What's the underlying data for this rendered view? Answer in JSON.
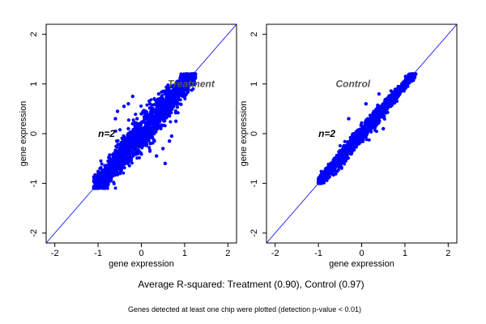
{
  "figure": {
    "caption": "Average R-squared: Treatment (0.90), Control (0.97)",
    "note": "Genes detected at least one chip were plotted (detection p-value < 0.01)"
  },
  "chart_data": [
    {
      "type": "scatter",
      "title": "Treatment",
      "annotation": "n=2",
      "xlabel": "gene expression",
      "ylabel": "gene expression",
      "xlim": [
        -2.2,
        2.2
      ],
      "ylim": [
        -2.2,
        2.2
      ],
      "xticks": [
        -2,
        -1,
        0,
        1,
        2
      ],
      "yticks": [
        -2,
        -1,
        0,
        1,
        2
      ],
      "grid": false,
      "point_color": "#0000ff",
      "reference_line": {
        "slope": 1,
        "intercept": 0,
        "color": "#0000ff"
      },
      "data_extent": {
        "x": [
          -1.1,
          1.25
        ],
        "y": [
          -1.1,
          1.2
        ]
      },
      "r_squared": 0.9,
      "series": [
        {
          "points": [
            [
              -1.05,
              -1.02
            ],
            [
              -0.95,
              -0.98
            ],
            [
              -0.9,
              -0.85
            ],
            [
              -0.85,
              -0.95
            ],
            [
              -0.8,
              -0.7
            ],
            [
              -0.75,
              -0.9
            ],
            [
              -0.7,
              -0.6
            ],
            [
              -0.65,
              -0.8
            ],
            [
              -0.6,
              -0.4
            ],
            [
              -0.55,
              -0.7
            ],
            [
              -0.5,
              -0.3
            ],
            [
              -0.45,
              -0.6
            ],
            [
              -0.4,
              -0.2
            ],
            [
              -0.35,
              -0.5
            ],
            [
              -0.3,
              0.1
            ],
            [
              -0.25,
              -0.35
            ],
            [
              -0.2,
              0.2
            ],
            [
              -0.15,
              -0.25
            ],
            [
              -0.1,
              0.3
            ],
            [
              -0.05,
              -0.15
            ],
            [
              0,
              0.4
            ],
            [
              0.05,
              -0.1
            ],
            [
              0.1,
              0.45
            ],
            [
              0.15,
              0
            ],
            [
              0.2,
              0.6
            ],
            [
              0.25,
              0.1
            ],
            [
              0.3,
              0.7
            ],
            [
              0.35,
              0.2
            ],
            [
              0.4,
              0.8
            ],
            [
              0.45,
              0.3
            ],
            [
              0.5,
              0.85
            ],
            [
              0.55,
              0.4
            ],
            [
              0.6,
              0.9
            ],
            [
              0.65,
              0.5
            ],
            [
              0.7,
              0.95
            ],
            [
              0.75,
              0.6
            ],
            [
              0.8,
              1.0
            ],
            [
              0.85,
              0.7
            ],
            [
              0.9,
              1.05
            ],
            [
              0.95,
              0.8
            ],
            [
              1.0,
              1.1
            ],
            [
              1.05,
              0.9
            ],
            [
              1.1,
              1.12
            ],
            [
              1.15,
              1.0
            ],
            [
              1.2,
              1.15
            ],
            [
              -0.55,
              0.45
            ],
            [
              -0.4,
              0.55
            ],
            [
              -0.2,
              0.75
            ],
            [
              0.5,
              -0.3
            ],
            [
              0.65,
              -0.15
            ],
            [
              0.35,
              -0.45
            ],
            [
              -0.6,
              0.3
            ],
            [
              0.7,
              -0.05
            ],
            [
              0.8,
              0.25
            ],
            [
              -0.3,
              0.6
            ],
            [
              0.55,
              -0.6
            ]
          ]
        }
      ]
    },
    {
      "type": "scatter",
      "title": "Control",
      "annotation": "n=2",
      "xlabel": "gene expression",
      "ylabel": "gene expression",
      "xlim": [
        -2.2,
        2.2
      ],
      "ylim": [
        -2.2,
        2.2
      ],
      "xticks": [
        -2,
        -1,
        0,
        1,
        2
      ],
      "yticks": [
        -2,
        -1,
        0,
        1,
        2
      ],
      "grid": false,
      "point_color": "#0000ff",
      "reference_line": {
        "slope": 1,
        "intercept": 0,
        "color": "#0000ff"
      },
      "data_extent": {
        "x": [
          -1.0,
          1.25
        ],
        "y": [
          -1.0,
          1.2
        ]
      },
      "r_squared": 0.97,
      "series": [
        {
          "points": [
            [
              -1.0,
              -0.98
            ],
            [
              -0.95,
              -0.88
            ],
            [
              -0.9,
              -0.92
            ],
            [
              -0.85,
              -0.78
            ],
            [
              -0.8,
              -0.85
            ],
            [
              -0.75,
              -0.68
            ],
            [
              -0.7,
              -0.75
            ],
            [
              -0.65,
              -0.58
            ],
            [
              -0.6,
              -0.66
            ],
            [
              -0.55,
              -0.48
            ],
            [
              -0.5,
              -0.56
            ],
            [
              -0.45,
              -0.38
            ],
            [
              -0.4,
              -0.46
            ],
            [
              -0.35,
              -0.28
            ],
            [
              -0.3,
              -0.36
            ],
            [
              -0.25,
              -0.18
            ],
            [
              -0.2,
              -0.26
            ],
            [
              -0.15,
              -0.08
            ],
            [
              -0.1,
              -0.16
            ],
            [
              -0.05,
              0.02
            ],
            [
              0,
              -0.06
            ],
            [
              0.05,
              0.12
            ],
            [
              0.1,
              0.04
            ],
            [
              0.15,
              0.22
            ],
            [
              0.2,
              0.14
            ],
            [
              0.25,
              0.32
            ],
            [
              0.3,
              0.24
            ],
            [
              0.35,
              0.42
            ],
            [
              0.4,
              0.34
            ],
            [
              0.45,
              0.52
            ],
            [
              0.5,
              0.44
            ],
            [
              0.55,
              0.62
            ],
            [
              0.6,
              0.54
            ],
            [
              0.65,
              0.72
            ],
            [
              0.7,
              0.64
            ],
            [
              0.75,
              0.82
            ],
            [
              0.8,
              0.74
            ],
            [
              0.85,
              0.92
            ],
            [
              0.9,
              0.84
            ],
            [
              0.95,
              1.0
            ],
            [
              1.0,
              0.94
            ],
            [
              1.05,
              1.08
            ],
            [
              1.1,
              1.04
            ],
            [
              1.15,
              1.14
            ],
            [
              1.2,
              1.18
            ],
            [
              -0.3,
              0.3
            ],
            [
              0.1,
              0.6
            ],
            [
              0.4,
              0.8
            ],
            [
              0.5,
              0.1
            ]
          ]
        }
      ]
    }
  ]
}
